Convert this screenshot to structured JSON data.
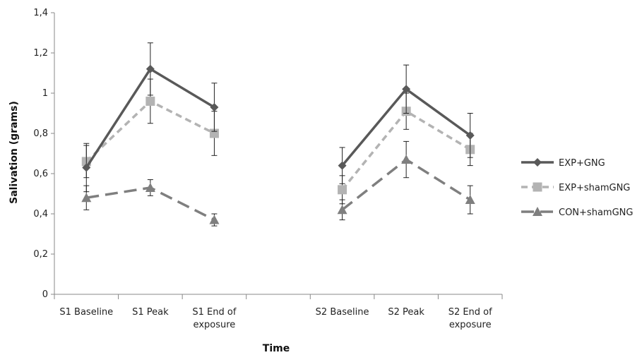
{
  "chart_data": {
    "type": "line",
    "title": "",
    "xlabel": "Time",
    "ylabel": "Salivation (grams)",
    "ylim": [
      0,
      1.4
    ],
    "y_ticks": [
      "0",
      "0,2",
      "0,4",
      "0,6",
      "0,8",
      "1",
      "1,2",
      "1,4"
    ],
    "categories": [
      [
        "S1 Baseline"
      ],
      [
        "S1 Peak"
      ],
      [
        "S1 End of",
        "exposure"
      ],
      [],
      [
        "S2 Baseline"
      ],
      [
        "S2 Peak"
      ],
      [
        "S2 End of",
        "exposure"
      ]
    ],
    "grid": false,
    "legend_position": "right",
    "series": [
      {
        "name": "EXP+GNG",
        "color": "#595959",
        "dash": "solid",
        "marker": "diamond",
        "values": [
          0.63,
          1.12,
          0.93,
          null,
          0.64,
          1.02,
          0.79
        ],
        "errors": [
          0.12,
          0.13,
          0.12,
          null,
          0.09,
          0.12,
          0.11
        ]
      },
      {
        "name": "EXP+shamGNG",
        "color": "#b3b3b3",
        "dash": "short",
        "marker": "square",
        "values": [
          0.66,
          0.96,
          0.8,
          null,
          0.52,
          0.91,
          0.72
        ],
        "errors": [
          0.08,
          0.11,
          0.11,
          null,
          0.07,
          0.09,
          0.08
        ]
      },
      {
        "name": "CON+shamGNG",
        "color": "#7f7f7f",
        "dash": "long",
        "marker": "triangle",
        "values": [
          0.48,
          0.53,
          0.37,
          null,
          0.42,
          0.67,
          0.47
        ],
        "errors": [
          0.06,
          0.04,
          0.03,
          null,
          0.05,
          0.09,
          0.07
        ]
      }
    ]
  }
}
